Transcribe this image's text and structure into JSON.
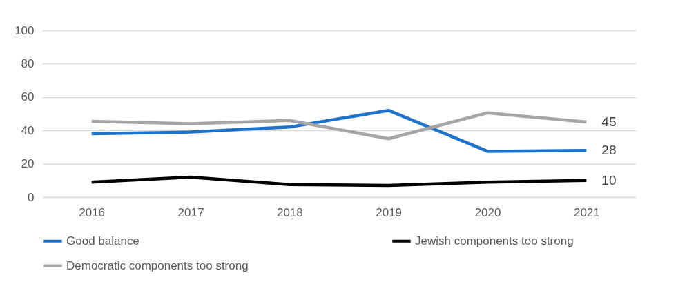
{
  "chart_data": {
    "type": "line",
    "categories": [
      "2016",
      "2017",
      "2018",
      "2019",
      "2020",
      "2021"
    ],
    "series": [
      {
        "name": "Good balance",
        "color": "#1f72c9",
        "values": [
          38,
          39,
          42,
          52,
          27.5,
          28
        ],
        "value_labels": [
          null,
          null,
          null,
          null,
          null,
          "28"
        ]
      },
      {
        "name": "Jewish components too strong",
        "color": "#000000",
        "values": [
          9,
          12,
          7.5,
          7,
          9,
          10
        ],
        "value_labels": [
          null,
          null,
          null,
          null,
          null,
          "10"
        ]
      },
      {
        "name": "Democratic components too strong",
        "color": "#a5a5a5",
        "values": [
          45.5,
          44,
          46,
          35,
          50.5,
          45
        ],
        "value_labels": [
          null,
          null,
          null,
          null,
          null,
          "45"
        ]
      }
    ],
    "ylim": [
      0,
      100
    ],
    "yticks": [
      0,
      20,
      40,
      60,
      80,
      100
    ],
    "grid": "y",
    "legend": "bottom",
    "marker": "none",
    "line_style": "solid"
  }
}
